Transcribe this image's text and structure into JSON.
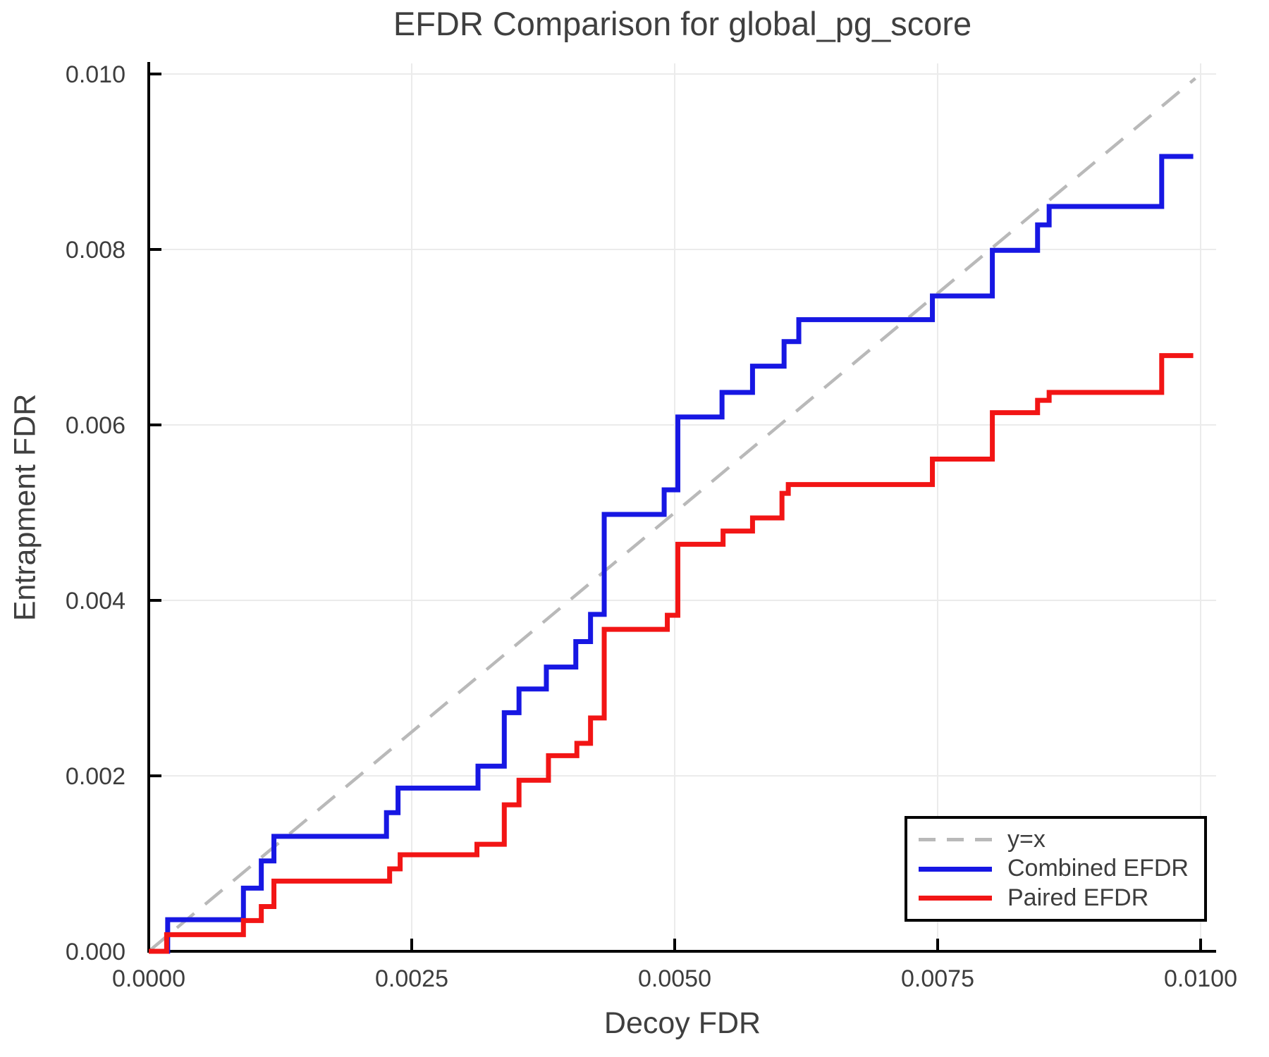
{
  "title": "EFDR Comparison for global_pg_score",
  "axes": {
    "xlabel": "Decoy FDR",
    "ylabel": "Entrapment FDR"
  },
  "legend": {
    "items": [
      {
        "label": "y=x",
        "color": "#b9b9b9",
        "style": "dashed"
      },
      {
        "label": "Combined EFDR",
        "color": "#1717e3",
        "style": "solid"
      },
      {
        "label": "Paired EFDR",
        "color": "#f21515",
        "style": "solid"
      }
    ]
  },
  "chart_data": {
    "type": "line",
    "step_mode": "post",
    "title": "EFDR Comparison for global_pg_score",
    "xlabel": "Decoy FDR",
    "ylabel": "Entrapment FDR",
    "xlim": [
      0,
      0.01015
    ],
    "ylim": [
      0,
      0.01012
    ],
    "grid": true,
    "legend_position": "lower right",
    "x_ticks": [
      0,
      0.0025,
      0.005,
      0.0075,
      0.01
    ],
    "x_tick_labels": [
      "0.0000",
      "0.0025",
      "0.0050",
      "0.0075",
      "0.0100"
    ],
    "y_ticks": [
      0,
      0.002,
      0.004,
      0.006,
      0.008,
      0.01
    ],
    "y_tick_labels": [
      "0.000",
      "0.002",
      "0.004",
      "0.006",
      "0.008",
      "0.010"
    ],
    "reference_line": {
      "name": "y=x",
      "style": "dashed",
      "color": "#b9b9b9",
      "points": [
        [
          0,
          0
        ],
        [
          0.00995,
          0.00995
        ]
      ]
    },
    "series": [
      {
        "name": "Combined EFDR",
        "color": "#1717e3",
        "points": [
          [
            0.0,
            0.0
          ],
          [
            0.00018,
            0.00036
          ],
          [
            0.0009,
            0.00072
          ],
          [
            0.00107,
            0.00103
          ],
          [
            0.00119,
            0.00131
          ],
          [
            0.00226,
            0.00158
          ],
          [
            0.00237,
            0.00186
          ],
          [
            0.00313,
            0.00211
          ],
          [
            0.00338,
            0.00272
          ],
          [
            0.00352,
            0.00299
          ],
          [
            0.00378,
            0.00324
          ],
          [
            0.00406,
            0.00353
          ],
          [
            0.0042,
            0.00384
          ],
          [
            0.00433,
            0.00498
          ],
          [
            0.0049,
            0.00526
          ],
          [
            0.00503,
            0.00609
          ],
          [
            0.00545,
            0.00637
          ],
          [
            0.00574,
            0.00667
          ],
          [
            0.00604,
            0.00695
          ],
          [
            0.00618,
            0.0072
          ],
          [
            0.00745,
            0.00747
          ],
          [
            0.00802,
            0.00799
          ],
          [
            0.00845,
            0.00828
          ],
          [
            0.00856,
            0.00849
          ],
          [
            0.00963,
            0.00906
          ],
          [
            0.00993,
            0.00906
          ]
        ]
      },
      {
        "name": "Paired EFDR",
        "color": "#f21515",
        "points": [
          [
            0.0,
            0.0
          ],
          [
            0.00017,
            0.00019
          ],
          [
            0.0009,
            0.00035
          ],
          [
            0.00107,
            0.00051
          ],
          [
            0.00119,
            0.0008
          ],
          [
            0.00229,
            0.00094
          ],
          [
            0.00239,
            0.0011
          ],
          [
            0.00312,
            0.00122
          ],
          [
            0.00338,
            0.00167
          ],
          [
            0.00352,
            0.00195
          ],
          [
            0.0038,
            0.00223
          ],
          [
            0.00407,
            0.00237
          ],
          [
            0.0042,
            0.00266
          ],
          [
            0.00433,
            0.00367
          ],
          [
            0.00493,
            0.00383
          ],
          [
            0.00503,
            0.00464
          ],
          [
            0.00546,
            0.00479
          ],
          [
            0.00574,
            0.00494
          ],
          [
            0.00602,
            0.00522
          ],
          [
            0.00608,
            0.00532
          ],
          [
            0.00745,
            0.00561
          ],
          [
            0.00802,
            0.00614
          ],
          [
            0.00845,
            0.00628
          ],
          [
            0.00856,
            0.00637
          ],
          [
            0.00963,
            0.00679
          ],
          [
            0.00993,
            0.00679
          ]
        ]
      }
    ]
  }
}
